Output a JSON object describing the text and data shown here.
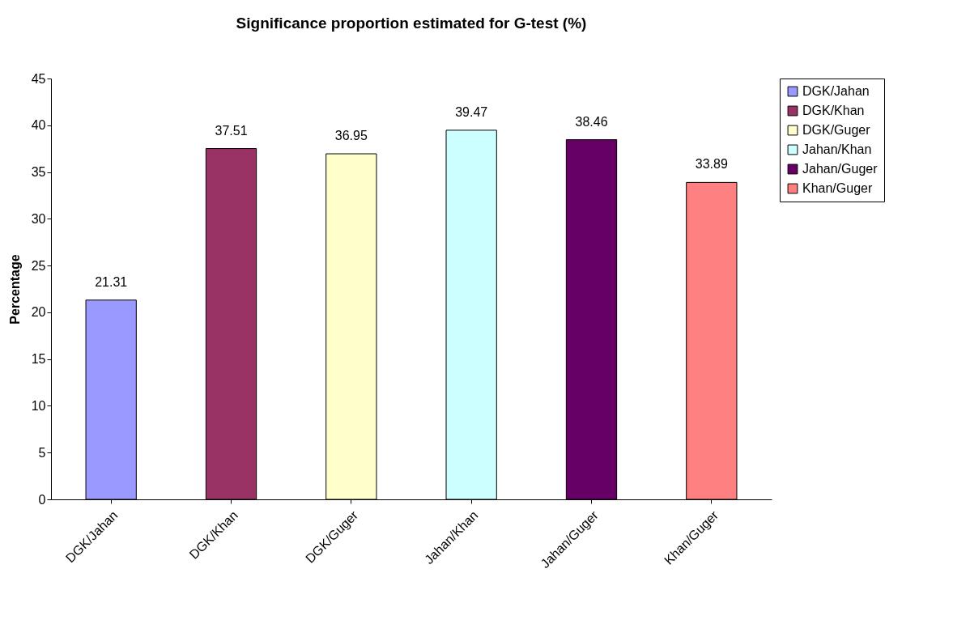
{
  "chart_data": {
    "type": "bar",
    "title": "Significance proportion estimated for G-test (%)",
    "ylabel": "Percentage",
    "categories": [
      "DGK/Jahan",
      "DGK/Khan",
      "DGK/Guger",
      "Jahan/Khan",
      "Jahan/Guger",
      "Khan/Guger"
    ],
    "series": [
      {
        "name": "DGK/Jahan",
        "color": "#9999ff",
        "values": [
          21.31,
          null,
          null,
          null,
          null,
          null
        ]
      },
      {
        "name": "DGK/Khan",
        "color": "#993366",
        "values": [
          null,
          37.51,
          null,
          null,
          null,
          null
        ]
      },
      {
        "name": "DGK/Guger",
        "color": "#ffffcc",
        "values": [
          null,
          null,
          36.95,
          null,
          null,
          null
        ]
      },
      {
        "name": "Jahan/Khan",
        "color": "#ccffff",
        "values": [
          null,
          null,
          null,
          39.47,
          null,
          null
        ]
      },
      {
        "name": "Jahan/Guger",
        "color": "#660066",
        "values": [
          null,
          null,
          null,
          null,
          38.46,
          null
        ]
      },
      {
        "name": "Khan/Guger",
        "color": "#ff8080",
        "values": [
          null,
          null,
          null,
          null,
          null,
          33.89
        ]
      }
    ],
    "ylim": [
      0,
      45
    ],
    "yticks": [
      0,
      5,
      10,
      15,
      20,
      25,
      30,
      35,
      40,
      45
    ],
    "grid": false,
    "legend": "right",
    "data_labels": true
  }
}
